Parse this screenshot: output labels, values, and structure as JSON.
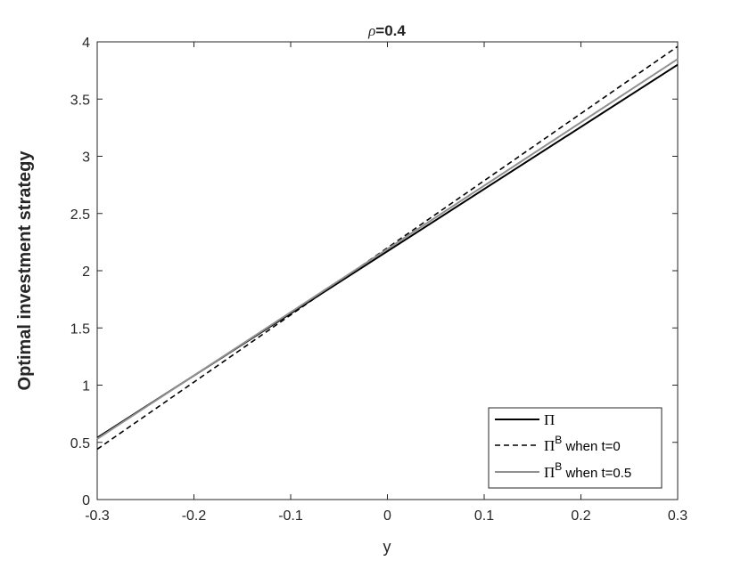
{
  "chart_data": {
    "type": "line",
    "title_symbol": "ρ",
    "title_value": "=0.4",
    "xlabel": "y",
    "ylabel": "Optimal investment strategy",
    "xlim": [
      -0.3,
      0.3
    ],
    "ylim": [
      0,
      4
    ],
    "xticks": [
      -0.3,
      -0.2,
      -0.1,
      0,
      0.1,
      0.2,
      0.3
    ],
    "xtick_labels": [
      "-0.3",
      "-0.2",
      "-0.1",
      "0",
      "0.1",
      "0.2",
      "0.3"
    ],
    "yticks": [
      0,
      0.5,
      1,
      1.5,
      2,
      2.5,
      3,
      3.5,
      4
    ],
    "ytick_labels": [
      "0",
      "0.5",
      "1",
      "1.5",
      "2",
      "2.5",
      "3",
      "3.5",
      "4"
    ],
    "legend_position": "bottom-right",
    "grid": false,
    "series": [
      {
        "name_symbol": "Π",
        "name_sup": "",
        "name_suffix": "",
        "style": "solid",
        "color": "#000000",
        "x": [
          -0.3,
          0.3
        ],
        "y": [
          0.54,
          3.8
        ]
      },
      {
        "name_symbol": "Π",
        "name_sup": "B",
        "name_suffix": " when t=0",
        "style": "dashed",
        "color": "#000000",
        "x": [
          -0.3,
          0.3
        ],
        "y": [
          0.44,
          3.96
        ]
      },
      {
        "name_symbol": "Π",
        "name_sup": "B",
        "name_suffix": " when t=0.5",
        "style": "solid",
        "color": "#909090",
        "x": [
          -0.3,
          0.3
        ],
        "y": [
          0.53,
          3.85
        ]
      }
    ]
  }
}
